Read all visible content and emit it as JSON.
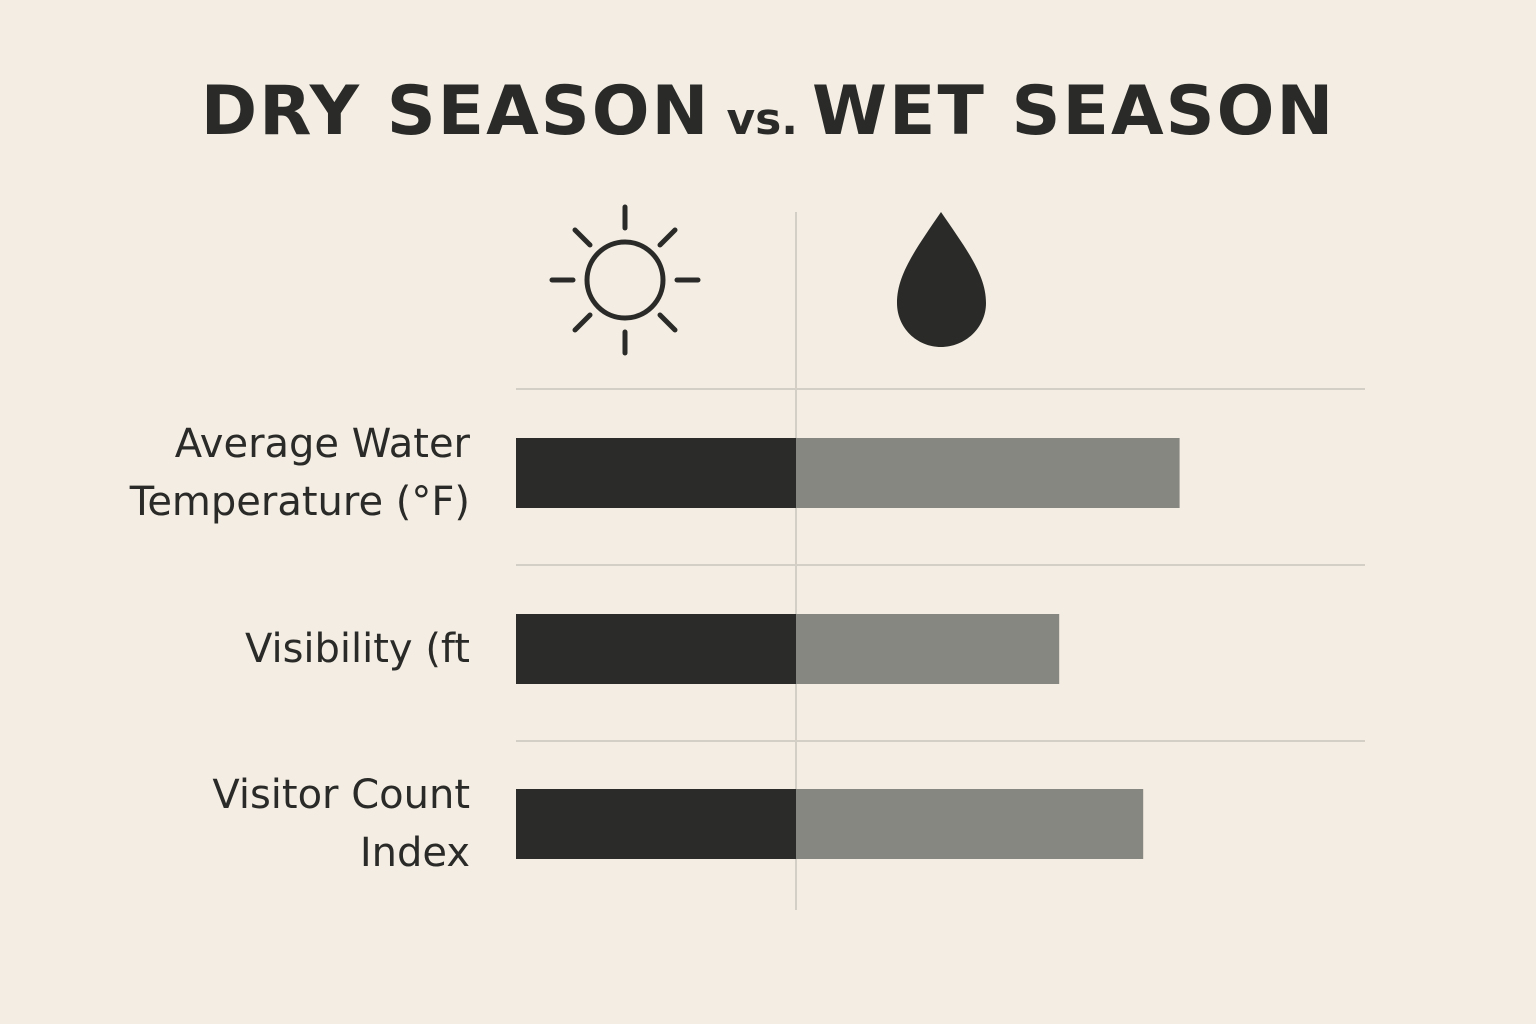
{
  "chart_data": {
    "type": "bar",
    "title": {
      "part1": "DRY SEASON",
      "connector": "vs.",
      "part2": "WET SEASON"
    },
    "series": [
      {
        "name": "DRY SEASON",
        "icon": "sun-icon",
        "color": "#2b2c29"
      },
      {
        "name": "WET SEASON",
        "icon": "water-drop-icon",
        "color": "#878781"
      }
    ],
    "categories": [
      {
        "line1": "Average Water",
        "line2": "Temperature (°F)"
      },
      {
        "line1": "Visibility (ft",
        "line2": ""
      },
      {
        "line1": "Visitor Count",
        "line2": "Index"
      }
    ],
    "values": [
      {
        "dry": 1.0,
        "wet": 1.37
      },
      {
        "dry": 1.0,
        "wet": 0.94
      },
      {
        "dry": 1.0,
        "wet": 1.24
      }
    ],
    "value_axis": "relative; unlabeled, dry season bar normalized to 1.0",
    "grid": true,
    "legend": "icons above columns (sun = dry, drop = wet)"
  }
}
